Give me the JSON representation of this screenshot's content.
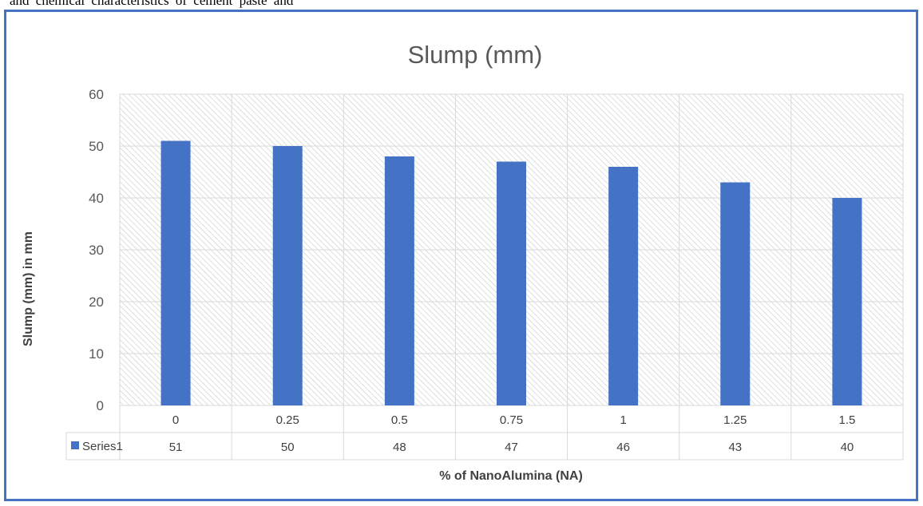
{
  "document": {
    "top_text": "and chemical characteristics of cement paste and"
  },
  "chart_data": {
    "type": "bar",
    "title": "Slump (mm)",
    "xlabel": "% of NanoAlumina (NA)",
    "ylabel": "Slump (mm) in mm",
    "categories": [
      "0",
      "0.25",
      "0.5",
      "0.75",
      "1",
      "1.25",
      "1.5"
    ],
    "series": [
      {
        "name": "Series1",
        "values": [
          51,
          50,
          48,
          47,
          46,
          43,
          40
        ]
      }
    ],
    "ylim": [
      0,
      60
    ],
    "yticks": [
      0,
      10,
      20,
      30,
      40,
      50,
      60
    ],
    "grid": true,
    "data_table": true,
    "legend": "in data table",
    "colors": {
      "bar": "#4472c4",
      "grid": "#d9d9d9",
      "hatch": "#d0d0d0",
      "frame": "#4472c4"
    }
  }
}
